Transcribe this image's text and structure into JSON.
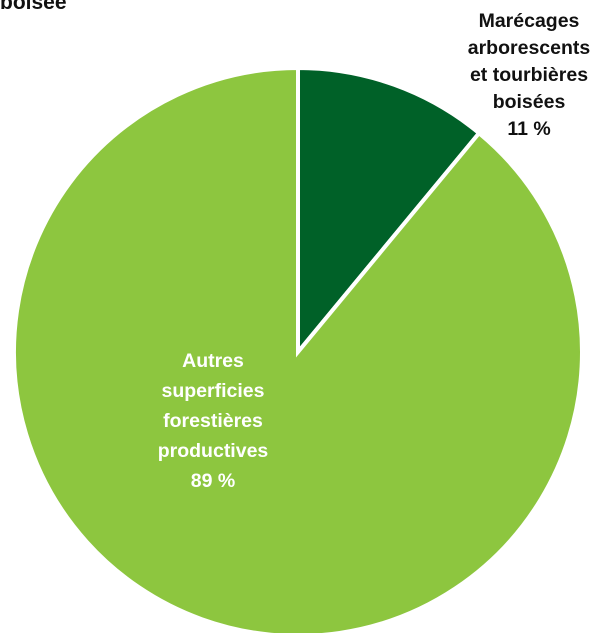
{
  "header": {
    "title_fragment": "boisée"
  },
  "chart_data": {
    "type": "pie",
    "title": "",
    "start_angle_deg": 0,
    "direction": "clockwise",
    "slices": [
      {
        "label_lines": [
          "Marécages",
          "arborescents",
          "et tourbières",
          "boisées"
        ],
        "value": 11,
        "value_label": "11 %",
        "color": "#006128",
        "label_placement": "outside-top-right",
        "label_color": "#111111"
      },
      {
        "label_lines": [
          "Autres",
          "superficies",
          "forestières",
          "productives"
        ],
        "value": 89,
        "value_label": "89 %",
        "color": "#8dc63f",
        "label_placement": "inside",
        "label_color": "#ffffff"
      }
    ],
    "separator_color": "#ffffff"
  }
}
